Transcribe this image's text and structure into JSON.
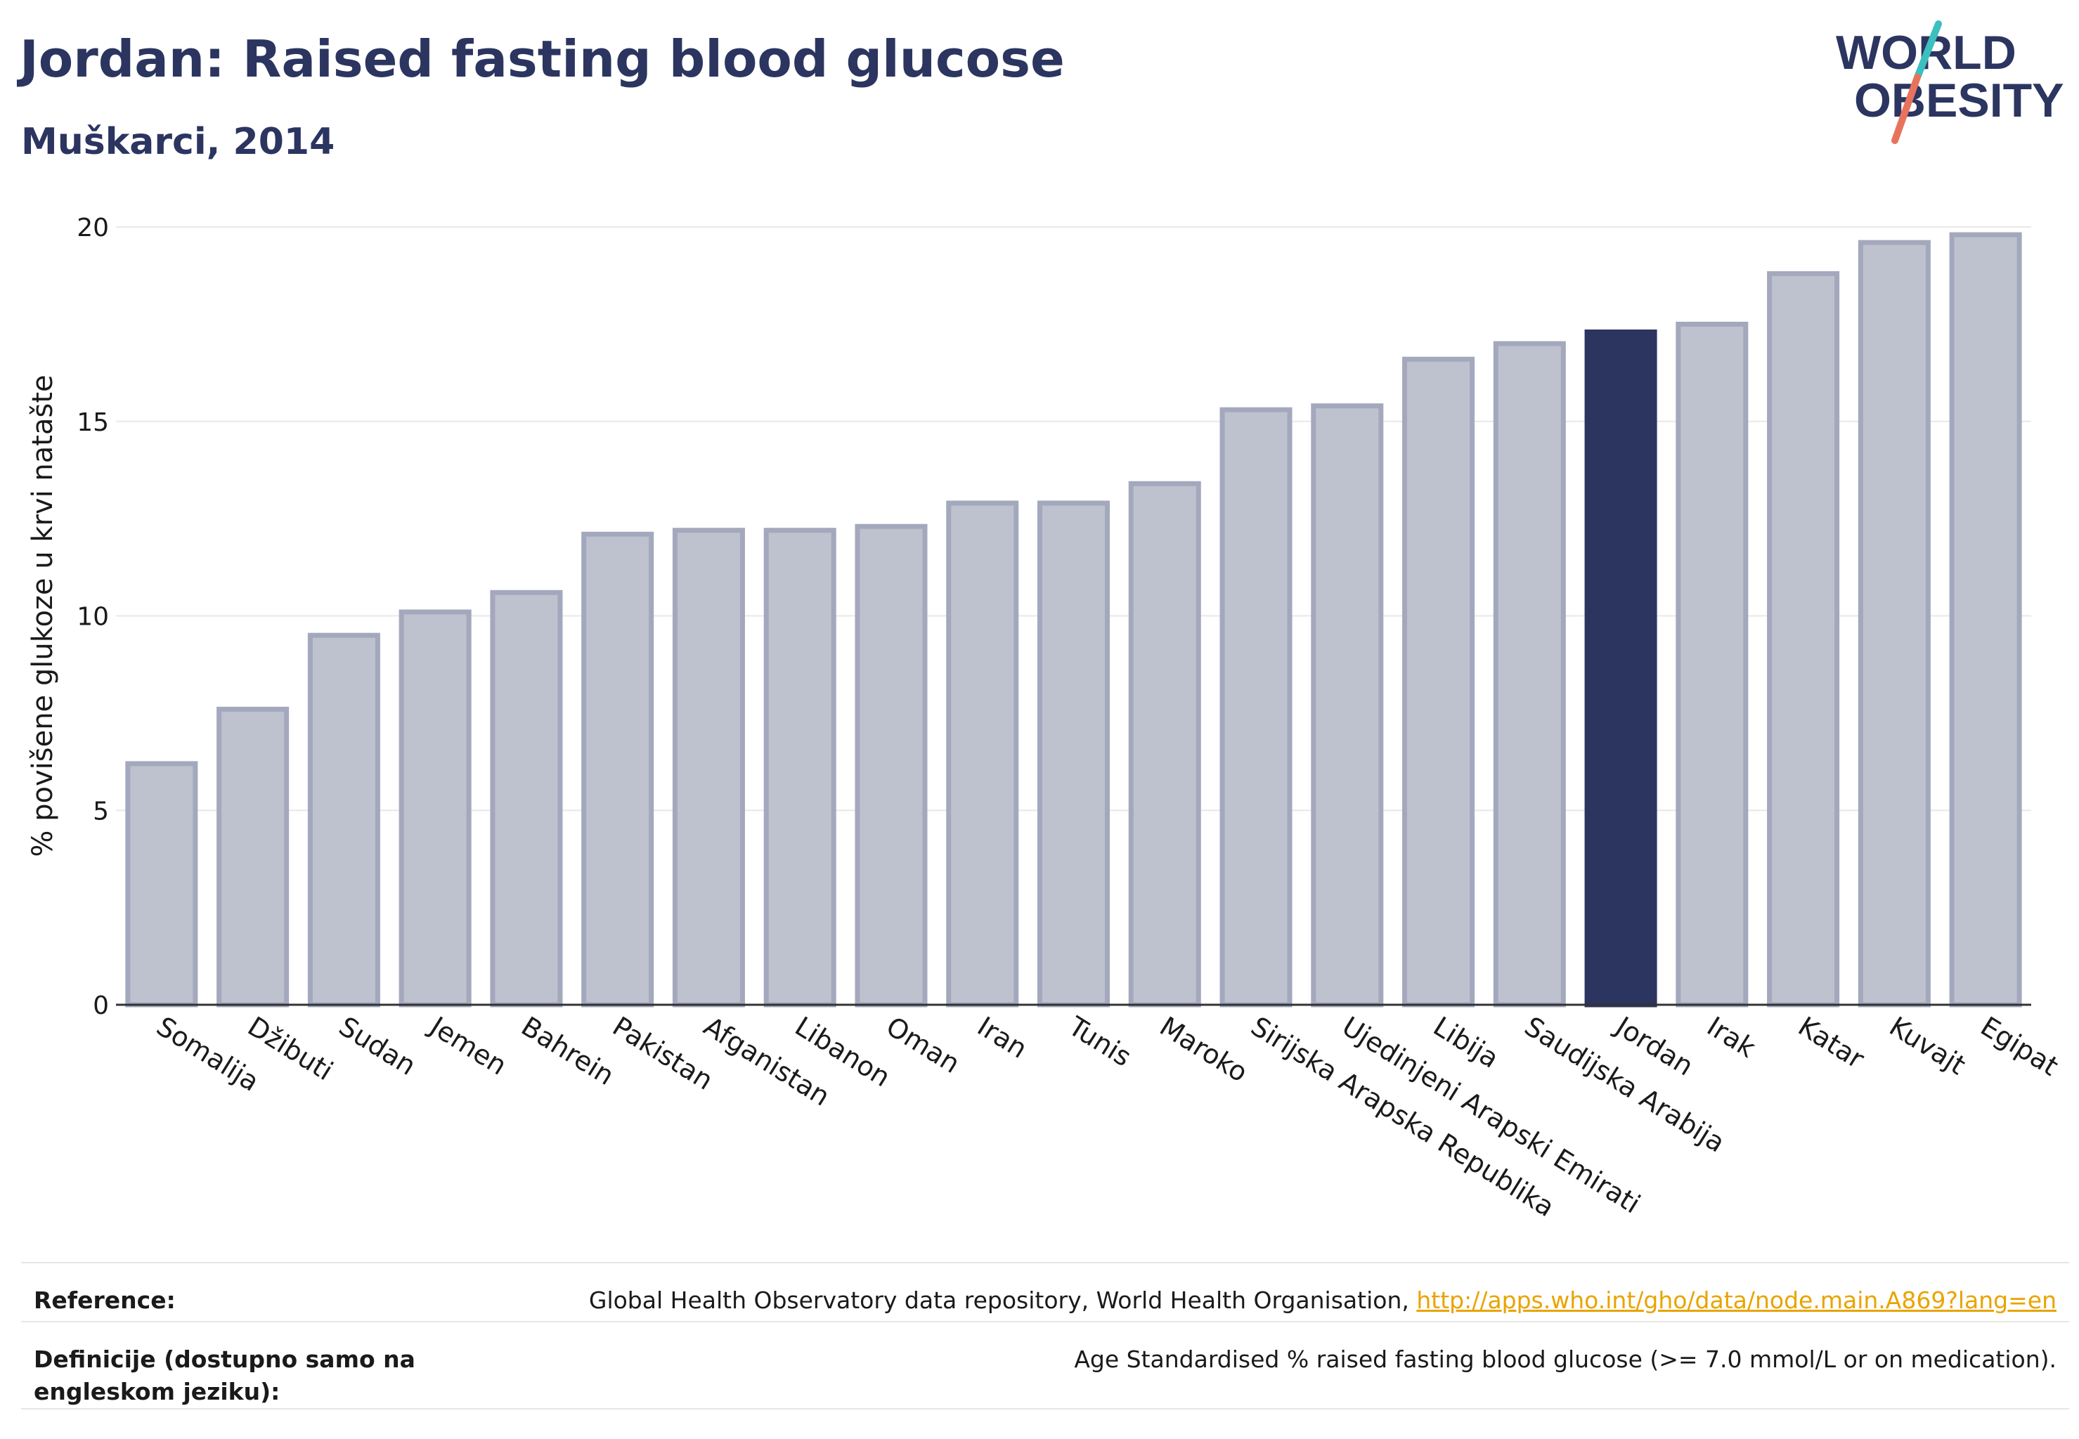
{
  "header": {
    "title": "Jordan: Raised fasting blood glucose",
    "subtitle": "Muškarci, 2014"
  },
  "logo": {
    "line1": "WORLD",
    "line2": "OBESITY",
    "colors": {
      "text": "#2b3560",
      "slash_top": "#3bbfbf",
      "slash_bottom": "#e8735c"
    }
  },
  "chart_data": {
    "type": "bar",
    "title": "Jordan: Raised fasting blood glucose",
    "subtitle": "Muškarci, 2014",
    "xlabel": "",
    "ylabel": "% povišene glukoze u krvi natašte",
    "ylim": [
      0,
      20
    ],
    "yticks": [
      0,
      5,
      10,
      15,
      20
    ],
    "grid": true,
    "categories": [
      "Somalija",
      "Džibuti",
      "Sudan",
      "Jemen",
      "Bahrein",
      "Pakistan",
      "Afganistan",
      "Libanon",
      "Oman",
      "Iran",
      "Tunis",
      "Maroko",
      "Sirijska Arapska Republika",
      "Ujedinjeni Arapski Emirati",
      "Libija",
      "Saudijska Arabija",
      "Jordan",
      "Irak",
      "Katar",
      "Kuvajt",
      "Egipat"
    ],
    "values": [
      6.2,
      7.6,
      9.5,
      10.1,
      10.6,
      12.1,
      12.2,
      12.2,
      12.3,
      12.9,
      12.9,
      13.4,
      15.3,
      15.4,
      16.6,
      17.0,
      17.3,
      17.5,
      18.8,
      19.6,
      19.8
    ],
    "highlight": "Jordan",
    "colors": {
      "bar": "#bec1ce",
      "bar_edge": "#a3a8bd",
      "highlight": "#2b3560",
      "axis": "#333333",
      "grid": "#e8e8e8"
    }
  },
  "footer": {
    "reference_label": "Reference:",
    "reference_text": "Global Health Observatory data repository, World Health Organisation, ",
    "reference_link": "http://apps.who.int/gho/data/node.main.A869?lang=en",
    "definition_label": "Definicije (dostupno samo na engleskom jeziku):",
    "definition_text": "Age Standardised % raised fasting blood glucose (>= 7.0 mmol/L or on medication)."
  }
}
